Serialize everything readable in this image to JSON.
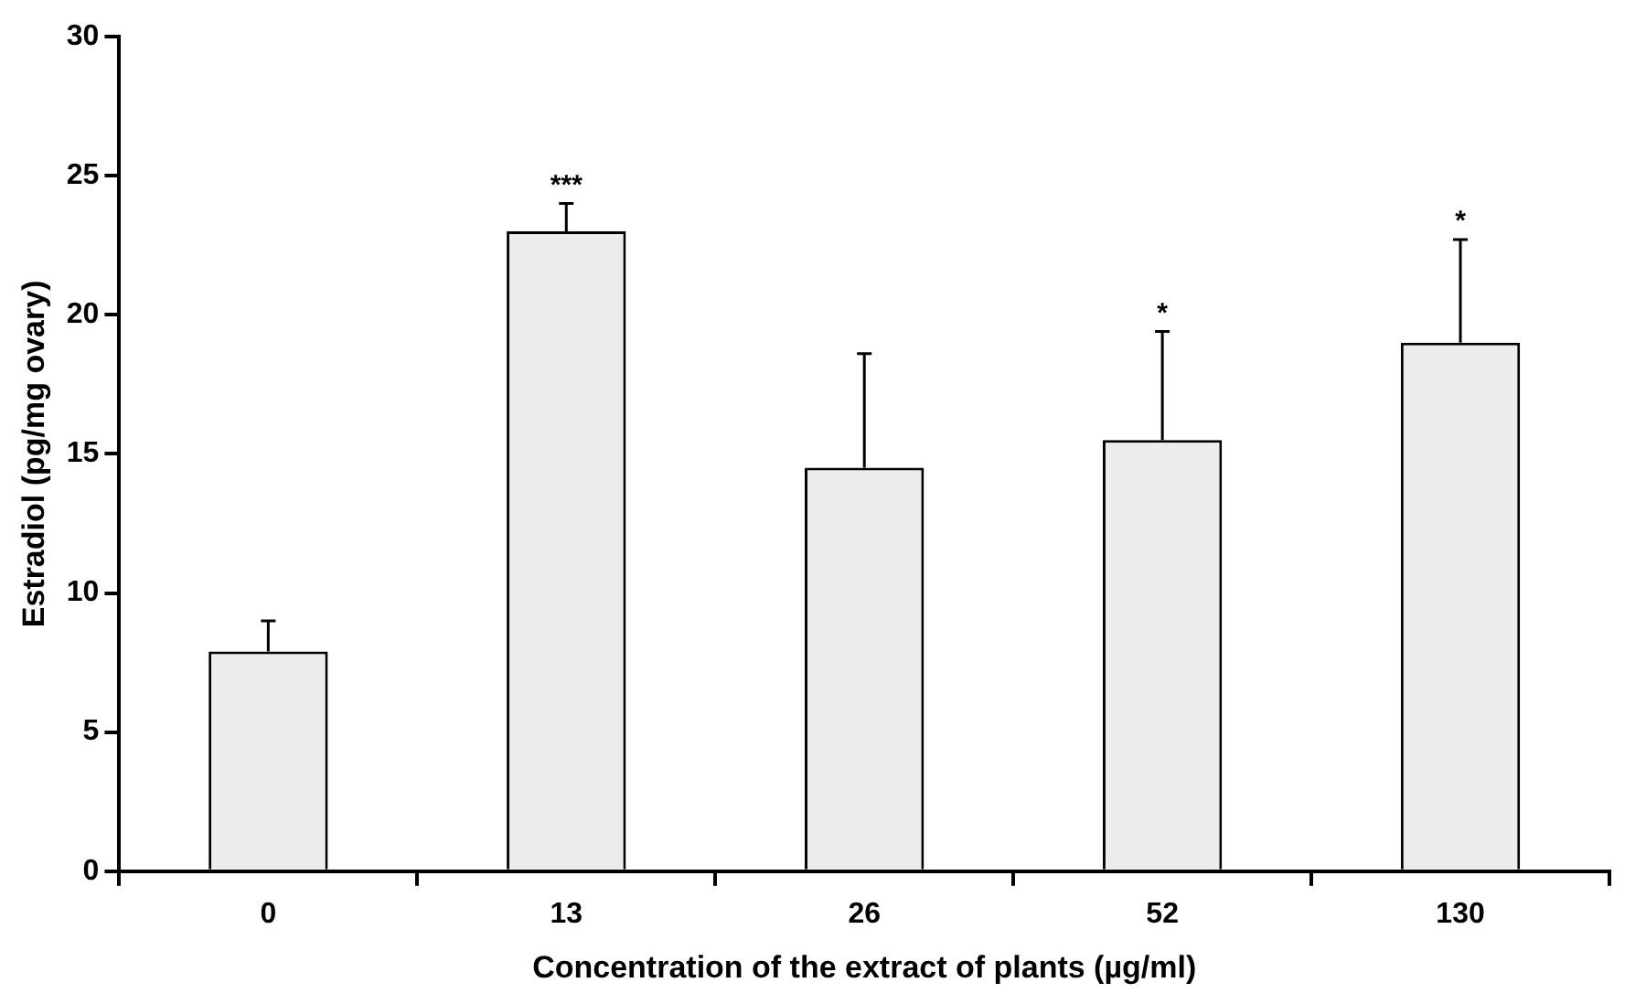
{
  "chart_data": {
    "type": "bar",
    "xlabel": "Concentration of the extract of plants (µg/ml)",
    "ylabel": "Estradiol (pg/mg ovary)",
    "categories": [
      "0",
      "13",
      "26",
      "52",
      "130"
    ],
    "values": [
      7.9,
      23,
      14.5,
      15.5,
      19
    ],
    "errors": [
      [
        7.9,
        9
      ],
      [
        23,
        24
      ],
      [
        14.5,
        18.6
      ],
      [
        15.5,
        19.4
      ],
      [
        19,
        22.7
      ]
    ],
    "color": "#ececec",
    "ylim": [
      0,
      30
    ],
    "yticks": [
      0,
      5,
      10,
      15,
      20,
      25,
      30
    ],
    "grid": false,
    "legend": false,
    "annotations": [
      {
        "text": "***",
        "x": "13",
        "y": 24
      },
      {
        "text": "*",
        "x": "52",
        "y": 19.4
      },
      {
        "text": "*",
        "x": "130",
        "y": 22.7
      }
    ]
  }
}
